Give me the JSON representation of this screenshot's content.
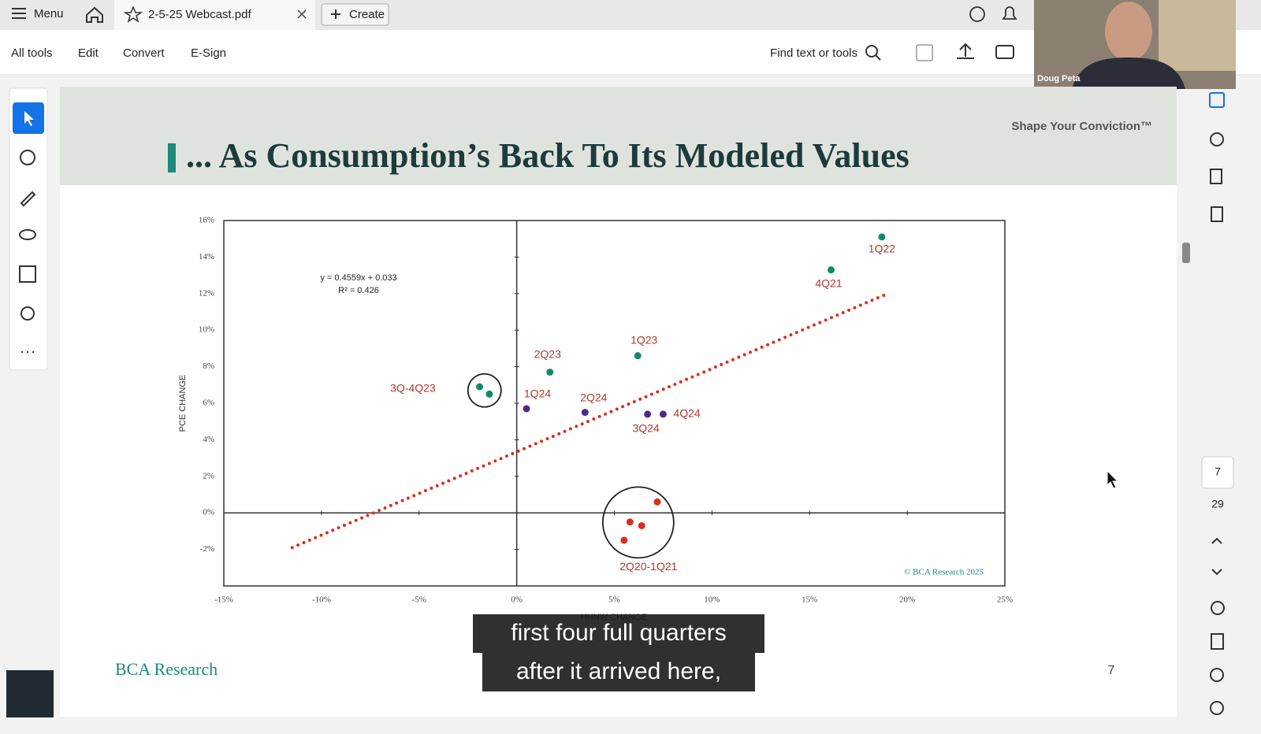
{
  "toolbar": {
    "menu": "Menu",
    "tab": "2-5-25 Webcast.pdf",
    "create": "Create",
    "tools": [
      "All tools",
      "Edit",
      "Convert",
      "E-Sign"
    ],
    "search": "Find text or tools"
  },
  "video": {
    "name": "Doug Peta"
  },
  "slide": {
    "tagline": "Shape Your Conviction™",
    "brand": "BCA Research",
    "page": "7"
  },
  "page_nav": {
    "current": "7",
    "total": "29"
  },
  "caption": [
    "first four full quarters",
    "after it arrived here,"
  ],
  "chart_data": {
    "type": "scatter",
    "title": "... As Consumption’s Back To Its Modeled Values",
    "x_label": "HHNW CHANGE",
    "y_label": "PCE CHANGE",
    "equation": "y = 0.4559x + 0.033",
    "r_squared": "R² = 0.426",
    "source": "© BCA Research 2025",
    "xlim": [
      -15,
      25
    ],
    "ylim": [
      -4,
      16
    ],
    "xticks": [
      {
        "value": -15,
        "label": "-15%"
      },
      {
        "value": -10,
        "label": "-10%"
      },
      {
        "value": -5,
        "label": "-5%"
      },
      {
        "value": 0,
        "label": "0%"
      },
      {
        "value": 5,
        "label": "5%"
      },
      {
        "value": 10,
        "label": "10%"
      },
      {
        "value": 15,
        "label": "15%"
      },
      {
        "value": 20,
        "label": "20%"
      },
      {
        "value": 25,
        "label": "25%"
      }
    ],
    "yticks": [
      {
        "value": -2,
        "label": "-2%"
      },
      {
        "value": 0,
        "label": "0%"
      },
      {
        "value": 2,
        "label": "2%"
      },
      {
        "value": 4,
        "label": "4%"
      },
      {
        "value": 6,
        "label": "6%"
      },
      {
        "value": 8,
        "label": "8%"
      },
      {
        "value": 10,
        "label": "10%"
      },
      {
        "value": 12,
        "label": "12%"
      },
      {
        "value": 14,
        "label": "14%"
      },
      {
        "value": 16,
        "label": "16%"
      }
    ],
    "trendline": {
      "color": "#d8301f",
      "x": [
        -11.5,
        19
      ],
      "y": [
        -1.9,
        12.0
      ]
    },
    "series": [
      {
        "name": "1Q22",
        "color": "#108a6a",
        "x": [
          18.7
        ],
        "y": [
          15.1
        ]
      },
      {
        "name": "4Q21",
        "color": "#108a6a",
        "x": [
          16.1
        ],
        "y": [
          13.3
        ]
      },
      {
        "name": "1Q23",
        "color": "#108a6a",
        "x": [
          6.2
        ],
        "y": [
          8.6
        ]
      },
      {
        "name": "2Q23",
        "color": "#108a6a",
        "x": [
          1.7
        ],
        "y": [
          7.7
        ]
      },
      {
        "name": "3Q-4Q23",
        "color": "#108a6a",
        "x": [
          -1.9,
          -1.4
        ],
        "y": [
          6.9,
          6.5
        ]
      },
      {
        "name": "1Q24",
        "color": "#4b2a8a",
        "x": [
          0.5
        ],
        "y": [
          5.7
        ]
      },
      {
        "name": "2Q24",
        "color": "#4b2a8a",
        "x": [
          3.5
        ],
        "y": [
          5.5
        ]
      },
      {
        "name": "3Q24",
        "color": "#4b2a8a",
        "x": [
          6.7
        ],
        "y": [
          5.4
        ]
      },
      {
        "name": "4Q24",
        "color": "#4b2a8a",
        "x": [
          7.5
        ],
        "y": [
          5.4
        ]
      },
      {
        "name": "2Q20-1Q21",
        "color": "#d8301f",
        "x": [
          7.2,
          5.8,
          6.4,
          5.5
        ],
        "y": [
          0.6,
          -0.5,
          -0.7,
          -1.5
        ]
      }
    ]
  }
}
